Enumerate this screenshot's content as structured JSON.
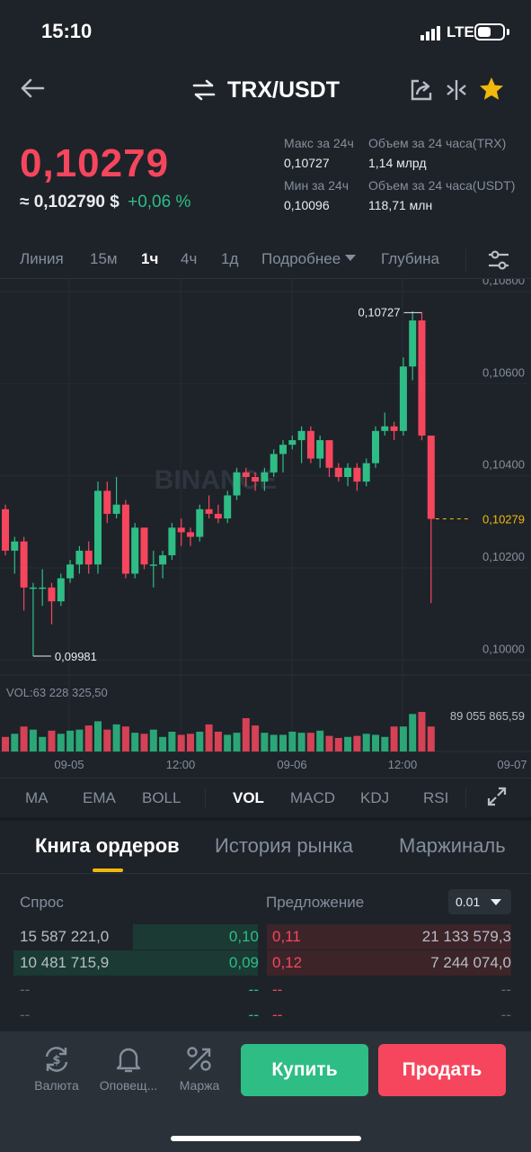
{
  "status_bar": {
    "time": "15:10",
    "network": "LTE"
  },
  "header": {
    "pair": "TRX/USDT"
  },
  "price": {
    "last": "0,10279",
    "approx": "≈ 0,102790 $",
    "change": "+0,06 %"
  },
  "stats": {
    "high_label": "Макс за 24ч",
    "high_value": "0,10727",
    "low_label": "Мин за 24ч",
    "low_value": "0,10096",
    "vol_trx_label": "Объем за 24 часа(TRX)",
    "vol_trx_value": "1,14 млрд",
    "vol_usdt_label": "Объем за 24 часа(USDT)",
    "vol_usdt_value": "118,71 млн"
  },
  "intervals": [
    {
      "label": "Линия",
      "active": false
    },
    {
      "label": "15м",
      "active": false
    },
    {
      "label": "1ч",
      "active": true
    },
    {
      "label": "4ч",
      "active": false
    },
    {
      "label": "1д",
      "active": false
    },
    {
      "label": "Подробнее",
      "active": false
    },
    {
      "label": "Глубина",
      "active": false
    }
  ],
  "chart_data": {
    "type": "candlestick",
    "price_axis": [
      "0,10800",
      "0,10600",
      "0,10400",
      "0,10200",
      "0,10000"
    ],
    "ylim": [
      0.0994,
      0.108
    ],
    "last_price_label": "0,10279",
    "last_price": 0.10279,
    "high_marker": "0,10727",
    "high_marker_value": 0.10727,
    "low_marker": "0,09981",
    "low_marker_value": 0.09981,
    "watermark": "BINANCE",
    "x_ticks": [
      "09-05",
      "12:00",
      "09-06",
      "12:00",
      "09-07"
    ],
    "volume_label": "VOL:63 228 325,50",
    "volume_max_label": "89 055 865,59",
    "candles": [
      {
        "o": 0.103,
        "h": 0.1031,
        "l": 0.102,
        "c": 0.1021
      },
      {
        "o": 0.1021,
        "h": 0.1024,
        "l": 0.1016,
        "c": 0.1023
      },
      {
        "o": 0.1023,
        "h": 0.1024,
        "l": 0.1008,
        "c": 0.1013
      },
      {
        "o": 0.1013,
        "h": 0.1014,
        "l": 0.09981,
        "c": 0.1013
      },
      {
        "o": 0.1013,
        "h": 0.1017,
        "l": 0.1009,
        "c": 0.1013
      },
      {
        "o": 0.1013,
        "h": 0.1014,
        "l": 0.1005,
        "c": 0.101
      },
      {
        "o": 0.101,
        "h": 0.1016,
        "l": 0.1009,
        "c": 0.1015
      },
      {
        "o": 0.1015,
        "h": 0.1019,
        "l": 0.1014,
        "c": 0.1018
      },
      {
        "o": 0.1018,
        "h": 0.1022,
        "l": 0.1016,
        "c": 0.1021
      },
      {
        "o": 0.1021,
        "h": 0.1023,
        "l": 0.1016,
        "c": 0.1018
      },
      {
        "o": 0.1018,
        "h": 0.1036,
        "l": 0.1016,
        "c": 0.1034
      },
      {
        "o": 0.1034,
        "h": 0.1036,
        "l": 0.1027,
        "c": 0.1029
      },
      {
        "o": 0.1029,
        "h": 0.1037,
        "l": 0.1028,
        "c": 0.1031
      },
      {
        "o": 0.1031,
        "h": 0.1032,
        "l": 0.1015,
        "c": 0.1016
      },
      {
        "o": 0.1016,
        "h": 0.1027,
        "l": 0.1015,
        "c": 0.1026
      },
      {
        "o": 0.1026,
        "h": 0.1026,
        "l": 0.1017,
        "c": 0.1018
      },
      {
        "o": 0.1018,
        "h": 0.1021,
        "l": 0.1013,
        "c": 0.1018
      },
      {
        "o": 0.1018,
        "h": 0.1021,
        "l": 0.1015,
        "c": 0.102
      },
      {
        "o": 0.102,
        "h": 0.1027,
        "l": 0.1019,
        "c": 0.1026
      },
      {
        "o": 0.1026,
        "h": 0.1028,
        "l": 0.1022,
        "c": 0.1025
      },
      {
        "o": 0.1025,
        "h": 0.1026,
        "l": 0.1022,
        "c": 0.1024
      },
      {
        "o": 0.1024,
        "h": 0.1031,
        "l": 0.1023,
        "c": 0.103
      },
      {
        "o": 0.103,
        "h": 0.1033,
        "l": 0.1028,
        "c": 0.1029
      },
      {
        "o": 0.1029,
        "h": 0.1031,
        "l": 0.1027,
        "c": 0.1028
      },
      {
        "o": 0.1028,
        "h": 0.1034,
        "l": 0.1027,
        "c": 0.1033
      },
      {
        "o": 0.1033,
        "h": 0.1039,
        "l": 0.1032,
        "c": 0.1038
      },
      {
        "o": 0.1038,
        "h": 0.1039,
        "l": 0.1035,
        "c": 0.1037
      },
      {
        "o": 0.1037,
        "h": 0.1038,
        "l": 0.1034,
        "c": 0.1036
      },
      {
        "o": 0.1036,
        "h": 0.1039,
        "l": 0.1034,
        "c": 0.1038
      },
      {
        "o": 0.1038,
        "h": 0.1043,
        "l": 0.1037,
        "c": 0.1042
      },
      {
        "o": 0.1042,
        "h": 0.1045,
        "l": 0.1038,
        "c": 0.1044
      },
      {
        "o": 0.1044,
        "h": 0.1046,
        "l": 0.1043,
        "c": 0.1045
      },
      {
        "o": 0.1045,
        "h": 0.1048,
        "l": 0.104,
        "c": 0.1047
      },
      {
        "o": 0.1047,
        "h": 0.1048,
        "l": 0.104,
        "c": 0.1041
      },
      {
        "o": 0.1041,
        "h": 0.1046,
        "l": 0.1039,
        "c": 0.1045
      },
      {
        "o": 0.1045,
        "h": 0.1045,
        "l": 0.1037,
        "c": 0.1039
      },
      {
        "o": 0.1039,
        "h": 0.104,
        "l": 0.1036,
        "c": 0.1037
      },
      {
        "o": 0.1037,
        "h": 0.104,
        "l": 0.1035,
        "c": 0.1039
      },
      {
        "o": 0.1039,
        "h": 0.104,
        "l": 0.1034,
        "c": 0.1036
      },
      {
        "o": 0.1036,
        "h": 0.1041,
        "l": 0.1035,
        "c": 0.104
      },
      {
        "o": 0.104,
        "h": 0.1048,
        "l": 0.1039,
        "c": 0.1047
      },
      {
        "o": 0.1047,
        "h": 0.1051,
        "l": 0.1046,
        "c": 0.1048
      },
      {
        "o": 0.1048,
        "h": 0.1049,
        "l": 0.1045,
        "c": 0.1047
      },
      {
        "o": 0.1047,
        "h": 0.1063,
        "l": 0.1046,
        "c": 0.1061
      },
      {
        "o": 0.1061,
        "h": 0.1073,
        "l": 0.1058,
        "c": 0.1071
      },
      {
        "o": 0.1071,
        "h": 0.10727,
        "l": 0.1045,
        "c": 0.1046
      },
      {
        "o": 0.1046,
        "h": 0.1046,
        "l": 0.10096,
        "c": 0.10279
      }
    ],
    "volumes": [
      14,
      17,
      24,
      21,
      14,
      20,
      17,
      20,
      21,
      25,
      29,
      21,
      26,
      24,
      18,
      17,
      21,
      14,
      19,
      16,
      17,
      19,
      26,
      19,
      16,
      18,
      32,
      25,
      18,
      16,
      16,
      19,
      18,
      18,
      20,
      15,
      13,
      14,
      15,
      17,
      16,
      14,
      24,
      24,
      36,
      38,
      24
    ]
  },
  "indicators": [
    {
      "label": "MA",
      "active": false
    },
    {
      "label": "EMA",
      "active": false
    },
    {
      "label": "BOLL",
      "active": false
    },
    {
      "label": "VOL",
      "active": true
    },
    {
      "label": "MACD",
      "active": false
    },
    {
      "label": "KDJ",
      "active": false
    },
    {
      "label": "RSI",
      "active": false
    }
  ],
  "order_tabs": [
    "Книга ордеров",
    "История рынка",
    "Маржиналь"
  ],
  "order_book": {
    "bid_header": "Спрос",
    "ask_header": "Предложение",
    "step": "0.01",
    "rows": [
      {
        "bid_qty": "15 587 221,0",
        "bid_price": "0,10",
        "ask_price": "0,11",
        "ask_qty": "21 133 579,3",
        "bid_fill": 0.51,
        "ask_fill": 1.0
      },
      {
        "bid_qty": "10 481 715,9",
        "bid_price": "0,09",
        "ask_price": "0,12",
        "ask_qty": "7 244 074,0",
        "bid_fill": 1.0,
        "ask_fill": 1.0
      },
      {
        "bid_qty": "--",
        "bid_price": "--",
        "ask_price": "--",
        "ask_qty": "--"
      },
      {
        "bid_qty": "--",
        "bid_price": "--",
        "ask_price": "--",
        "ask_qty": "--"
      }
    ]
  },
  "bottom_nav": {
    "currency_label": "Валюта",
    "alerts_label": "Оповещ...",
    "margin_label": "Маржа",
    "buy_label": "Купить",
    "sell_label": "Продать"
  },
  "colors": {
    "background": "#1e2329",
    "up": "#2ebd85",
    "down": "#f6465d",
    "accent": "#f0b90b",
    "muted": "#848e9c"
  }
}
